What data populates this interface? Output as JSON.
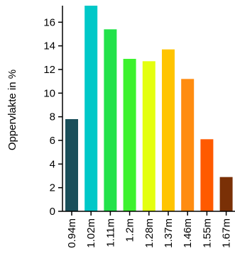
{
  "chart_data": {
    "type": "bar",
    "ylabel": "Oppervlakte in %",
    "xlabel": "",
    "title": "",
    "ylim": [
      0,
      17.4
    ],
    "yticks": [
      0,
      2,
      4,
      6,
      8,
      10,
      12,
      14,
      16
    ],
    "categories": [
      "0.94m",
      "1.02m",
      "1.11m",
      "1.2m",
      "1.28m",
      "1.37m",
      "1.46m",
      "1.55m",
      "1.67m"
    ],
    "values": [
      7.8,
      17.4,
      15.4,
      12.9,
      12.7,
      13.7,
      11.2,
      6.1,
      2.9
    ],
    "colors": [
      "#1a4f5a",
      "#00c8c8",
      "#22e24a",
      "#3cf22e",
      "#e4ff10",
      "#ffc400",
      "#ff8c10",
      "#ff5a00",
      "#7a3006"
    ],
    "grid": false,
    "legend": "none"
  }
}
